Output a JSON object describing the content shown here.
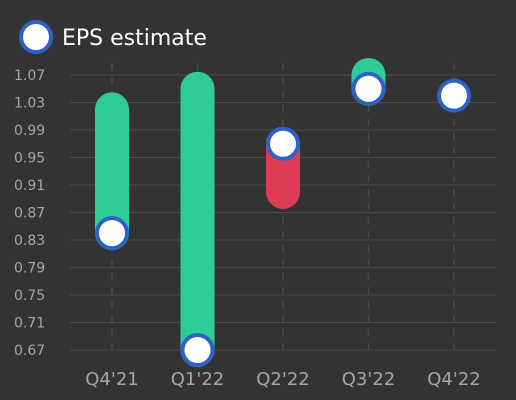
{
  "chart_data": {
    "type": "bar",
    "title": "",
    "xlabel": "",
    "ylabel": "",
    "legend": {
      "label": "EPS estimate",
      "position": "top-left"
    },
    "categories": [
      "Q4'21",
      "Q1'22",
      "Q2'22",
      "Q3'22",
      "Q4'22"
    ],
    "bars": [
      {
        "category": "Q4'21",
        "start": 0.84,
        "end": 1.02,
        "direction": "up"
      },
      {
        "category": "Q1'22",
        "start": 0.67,
        "end": 1.05,
        "direction": "up"
      },
      {
        "category": "Q2'22",
        "start": 0.97,
        "end": 0.9,
        "direction": "down"
      },
      {
        "category": "Q3'22",
        "start": 1.05,
        "end": 1.07,
        "direction": "up"
      },
      {
        "category": "Q4'22",
        "start": 1.04,
        "end": 1.04,
        "direction": "none"
      }
    ],
    "estimates": [
      0.84,
      0.67,
      0.97,
      1.05,
      1.04
    ],
    "yticks": [
      "1.07",
      "1.03",
      "0.99",
      "0.95",
      "0.91",
      "0.87",
      "0.83",
      "0.79",
      "0.75",
      "0.71",
      "0.67"
    ],
    "ylim": [
      0.67,
      1.07
    ],
    "grid": true,
    "colors": {
      "background": "#333333",
      "up": "#2ecc96",
      "down": "#dc3d55",
      "marker_fill": "#ffffff",
      "marker_stroke": "#2e62c8",
      "grid": "#4a4a4a",
      "tick_text": "#a6a6a6",
      "legend_text": "#ffffff"
    }
  }
}
